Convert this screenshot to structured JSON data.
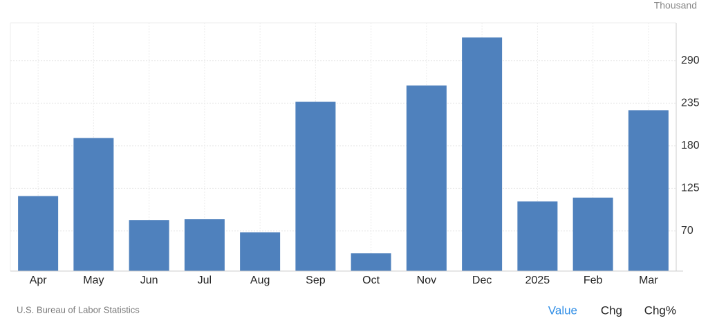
{
  "chart_data": {
    "type": "bar",
    "unit": "Thousand",
    "source": "U.S. Bureau of Labor Statistics",
    "buttons": [
      "Value",
      "Chg",
      "Chg%"
    ],
    "categories": [
      "Apr",
      "May",
      "Jun",
      "Jul",
      "Aug",
      "Sep",
      "Oct",
      "Nov",
      "Dec",
      "2025",
      "Feb",
      "Mar"
    ],
    "values": [
      115,
      190,
      84,
      85,
      68,
      237,
      41,
      258,
      320,
      108,
      113,
      226
    ],
    "color": "#4f81bd",
    "ylim": [
      18,
      339
    ],
    "yticks": [
      70,
      125,
      180,
      235,
      290
    ],
    "grid": true
  }
}
